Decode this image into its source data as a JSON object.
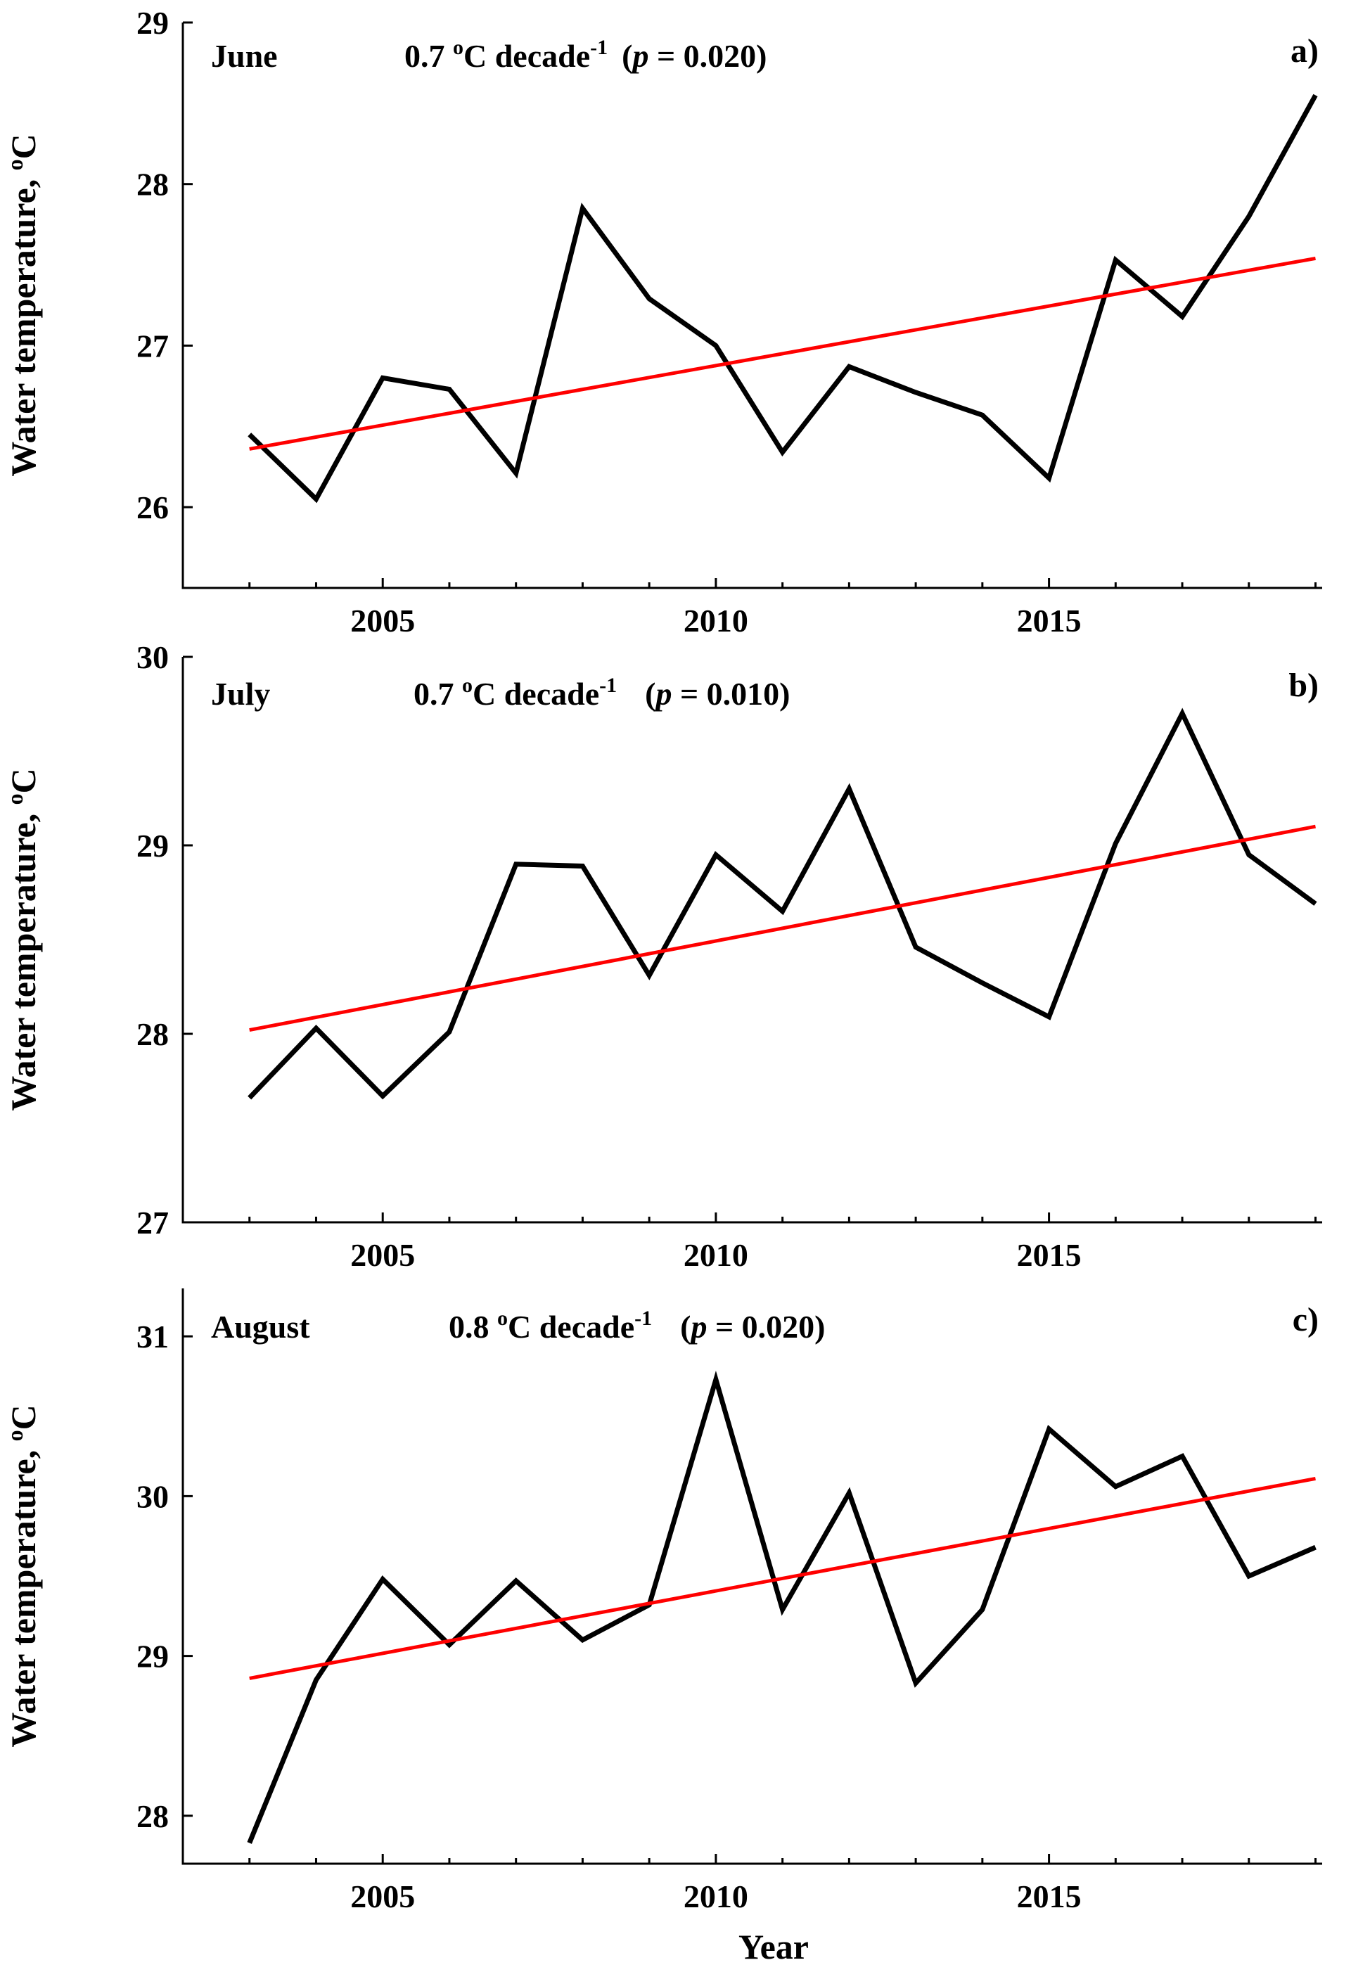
{
  "chart_data": [
    {
      "type": "line",
      "panel_label": "a)",
      "month": "June",
      "trend_text": "0.7 ",
      "trend_deg": "o",
      "trend_unit": "C decade",
      "trend_exp": "-1",
      "p_open": "(",
      "p_symbol": "p",
      "p_rest": " = 0.020)",
      "ylabel": "Water temperature, ",
      "ylabel_deg": "o",
      "ylabel_unit": "C",
      "xlabel": "",
      "xlim": [
        2002.0,
        2019.1
      ],
      "ylim": [
        25.5,
        29.0
      ],
      "xticks": [
        2005,
        2010,
        2015
      ],
      "xtick_labels": [
        "2005",
        "2010",
        "2015"
      ],
      "yticks": [
        26,
        27,
        28,
        29
      ],
      "ytick_labels": [
        "26",
        "27",
        "28",
        "29"
      ],
      "series": [
        {
          "color": "#000000",
          "x": [
            2003,
            2004,
            2005,
            2006,
            2007,
            2008,
            2009,
            2010,
            2011,
            2012,
            2013,
            2014,
            2015,
            2016,
            2017,
            2018,
            2019
          ],
          "y": [
            26.45,
            26.05,
            26.8,
            26.73,
            26.21,
            27.85,
            27.29,
            27.0,
            26.34,
            26.87,
            26.71,
            26.57,
            26.18,
            27.53,
            27.18,
            27.8,
            28.55
          ]
        },
        {
          "color": "#ff0000",
          "x": [
            2003,
            2019
          ],
          "y": [
            26.36,
            27.54
          ]
        }
      ]
    },
    {
      "type": "line",
      "panel_label": "b)",
      "month": "July",
      "trend_text": "0.7 ",
      "trend_deg": "o",
      "trend_unit": "C decade",
      "trend_exp": "-1",
      "p_open": "(",
      "p_symbol": "p",
      "p_rest": " = 0.010)",
      "ylabel": "Water temperature, ",
      "ylabel_deg": "o",
      "ylabel_unit": "C",
      "xlabel": "",
      "xlim": [
        2002.0,
        2019.1
      ],
      "ylim": [
        27.0,
        30.0
      ],
      "xticks": [
        2005,
        2010,
        2015
      ],
      "xtick_labels": [
        "2005",
        "2010",
        "2015"
      ],
      "yticks": [
        27,
        28,
        29,
        30
      ],
      "ytick_labels": [
        "27",
        "28",
        "29",
        "30"
      ],
      "series": [
        {
          "color": "#000000",
          "x": [
            2003,
            2004,
            2005,
            2006,
            2007,
            2008,
            2009,
            2010,
            2011,
            2012,
            2013,
            2014,
            2015,
            2016,
            2017,
            2018,
            2019
          ],
          "y": [
            27.66,
            28.03,
            27.67,
            28.01,
            28.9,
            28.89,
            28.31,
            28.95,
            28.65,
            29.3,
            28.46,
            28.27,
            28.09,
            29.01,
            29.7,
            28.95,
            28.69
          ]
        },
        {
          "color": "#ff0000",
          "x": [
            2003,
            2019
          ],
          "y": [
            28.02,
            29.1
          ]
        }
      ]
    },
    {
      "type": "line",
      "panel_label": "c)",
      "month": "August",
      "trend_text": "0.8 ",
      "trend_deg": "o",
      "trend_unit": "C decade",
      "trend_exp": "-1",
      "p_open": "(",
      "p_symbol": "p",
      "p_rest": " = 0.020)",
      "ylabel": "Water temperature, ",
      "ylabel_deg": "o",
      "ylabel_unit": "C",
      "xlabel": "Year",
      "xlim": [
        2002.0,
        2019.1
      ],
      "ylim": [
        27.7,
        31.3
      ],
      "xticks": [
        2005,
        2010,
        2015
      ],
      "xtick_labels": [
        "2005",
        "2010",
        "2015"
      ],
      "yticks": [
        28,
        29,
        30,
        31
      ],
      "ytick_labels": [
        "28",
        "29",
        "30",
        "31"
      ],
      "series": [
        {
          "color": "#000000",
          "x": [
            2003,
            2004,
            2005,
            2006,
            2007,
            2008,
            2009,
            2010,
            2011,
            2012,
            2013,
            2014,
            2015,
            2016,
            2017,
            2018,
            2019
          ],
          "y": [
            27.83,
            28.85,
            29.48,
            29.07,
            29.47,
            29.1,
            29.32,
            30.73,
            29.29,
            30.02,
            28.83,
            29.29,
            30.42,
            30.06,
            30.25,
            29.5,
            29.68
          ]
        },
        {
          "color": "#ff0000",
          "x": [
            2003,
            2019
          ],
          "y": [
            28.86,
            30.11
          ]
        }
      ]
    }
  ]
}
